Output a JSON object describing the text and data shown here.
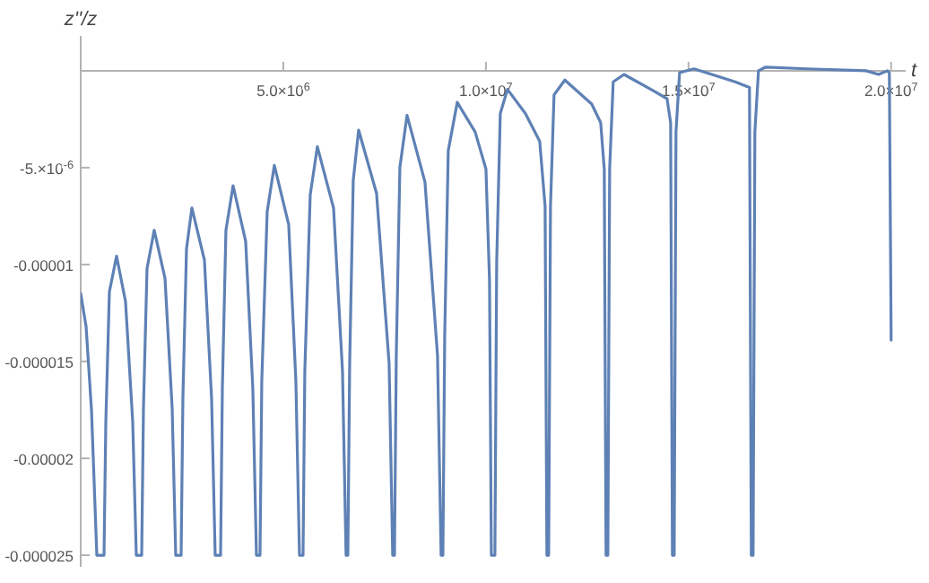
{
  "chart_data": {
    "type": "line",
    "xlabel": "t",
    "ylabel": "z''/z",
    "xlim": [
      0,
      20360000
    ],
    "ylim": [
      -2.56e-05,
      1.8e-06
    ],
    "xticks": [
      {
        "value": 5000000,
        "label": "5.0×10$^{6}$"
      },
      {
        "value": 10000000,
        "label": "1.0×10$^{7}$"
      },
      {
        "value": 15000000,
        "label": "1.5×10$^{7}$"
      },
      {
        "value": 20000000,
        "label": "2.0×10$^{7}$"
      }
    ],
    "yticks": [
      {
        "value": -5e-06,
        "label": "-5.×10$^{-6}$"
      },
      {
        "value": -1e-05,
        "label": "-0.00001"
      },
      {
        "value": -1.5e-05,
        "label": "-0.000015"
      },
      {
        "value": -2e-05,
        "label": "-0.00002"
      },
      {
        "value": -2.5e-05,
        "label": "-0.000025"
      }
    ],
    "grid": false,
    "marker": "none",
    "line_style": "solid",
    "series": [
      {
        "color": "#5e81b5",
        "x": [
          0,
          133000,
          266000,
          398000,
          575000,
          620000,
          708000,
          885000,
          1106000,
          1283000,
          1372000,
          1505000,
          1549000,
          1637000,
          1814000,
          2080000,
          2257000,
          2345000,
          2478000,
          2522000,
          2611000,
          2744000,
          3053000,
          3230000,
          3319000,
          3452000,
          3496000,
          3584000,
          3761000,
          4071000,
          4248000,
          4337000,
          4425000,
          4469000,
          4602000,
          4779000,
          5133000,
          5310000,
          5399000,
          5487000,
          5531000,
          5664000,
          5841000,
          6240000,
          6461000,
          6549000,
          6593000,
          6638000,
          6726000,
          6859000,
          7301000,
          7611000,
          7700000,
          7744000,
          7788000,
          7877000,
          8054000,
          8496000,
          8806000,
          8894000,
          8939000,
          8983000,
          9071000,
          9293000,
          9735000,
          10001000,
          10089000,
          10134000,
          10222000,
          10266000,
          10355000,
          10532000,
          10974000,
          11328000,
          11461000,
          11505000,
          11549000,
          11594000,
          11682000,
          11948000,
          12611000,
          12833000,
          12921000,
          12965000,
          13010000,
          13054000,
          13142000,
          13408000,
          14072000,
          14470000,
          14559000,
          14603000,
          14647000,
          14691000,
          14780000,
          15134000,
          15576000,
          16151000,
          16505000,
          16550000,
          16594000,
          16638000,
          16727000,
          16904000,
          17921000,
          19381000,
          19691000,
          19913000,
          19957000,
          20001000
        ],
        "values": [
          -1.15e-05,
          -1.32e-05,
          -1.75e-05,
          -2.5e-05,
          -2.5e-05,
          -1.81e-05,
          -1.14e-05,
          -9.57e-06,
          -1.19e-05,
          -1.81e-05,
          -2.5e-05,
          -2.5e-05,
          -1.74e-05,
          -1.02e-05,
          -8.23e-06,
          -1.07e-05,
          -1.74e-05,
          -2.5e-05,
          -2.5e-05,
          -1.69e-05,
          -9.19e-06,
          -7.08e-06,
          -9.76e-06,
          -1.69e-05,
          -2.5e-05,
          -2.5e-05,
          -1.64e-05,
          -8.23e-06,
          -5.93e-06,
          -8.8e-06,
          -1.64e-05,
          -2.5e-05,
          -2.5e-05,
          -1.6e-05,
          -7.27e-06,
          -4.88e-06,
          -7.94e-06,
          -1.6e-05,
          -2.5e-05,
          -2.5e-05,
          -1.55e-05,
          -6.41e-06,
          -3.92e-06,
          -7.08e-06,
          -1.55e-05,
          -2.5e-05,
          -2.5e-05,
          -1.51e-05,
          -5.65e-06,
          -3.06e-06,
          -6.32e-06,
          -1.51e-05,
          -2.5e-05,
          -2.5e-05,
          -1.47e-05,
          -4.98e-06,
          -2.3e-06,
          -5.74e-06,
          -1.47e-05,
          -2.5e-05,
          -2.5e-05,
          -1.37e-05,
          -4.12e-06,
          -1.63e-06,
          -3.16e-06,
          -5.07e-06,
          -1.08e-05,
          -2.5e-05,
          -2.5e-05,
          -9.86e-06,
          -2.2e-06,
          -9.6e-07,
          -2.2e-06,
          -3.64e-06,
          -6.99e-06,
          -2.5e-05,
          -2.5e-05,
          -6.99e-06,
          -1.24e-06,
          -4.8e-07,
          -1.72e-06,
          -2.68e-06,
          -5.07e-06,
          -2.5e-05,
          -2.5e-05,
          -5.07e-06,
          -5.7e-07,
          -1.9e-07,
          -9.6e-07,
          -1.44e-06,
          -2.68e-06,
          -2.5e-05,
          -2.5e-05,
          -3.16e-06,
          -1e-07,
          1e-07,
          -1.9e-07,
          -5.7e-07,
          -8.6e-07,
          -2.5e-05,
          -2.5e-05,
          -3.16e-06,
          0,
          1.9e-07,
          1e-07,
          0,
          -1.9e-07,
          0,
          -1e-07,
          -1.39e-05
        ]
      }
    ]
  }
}
